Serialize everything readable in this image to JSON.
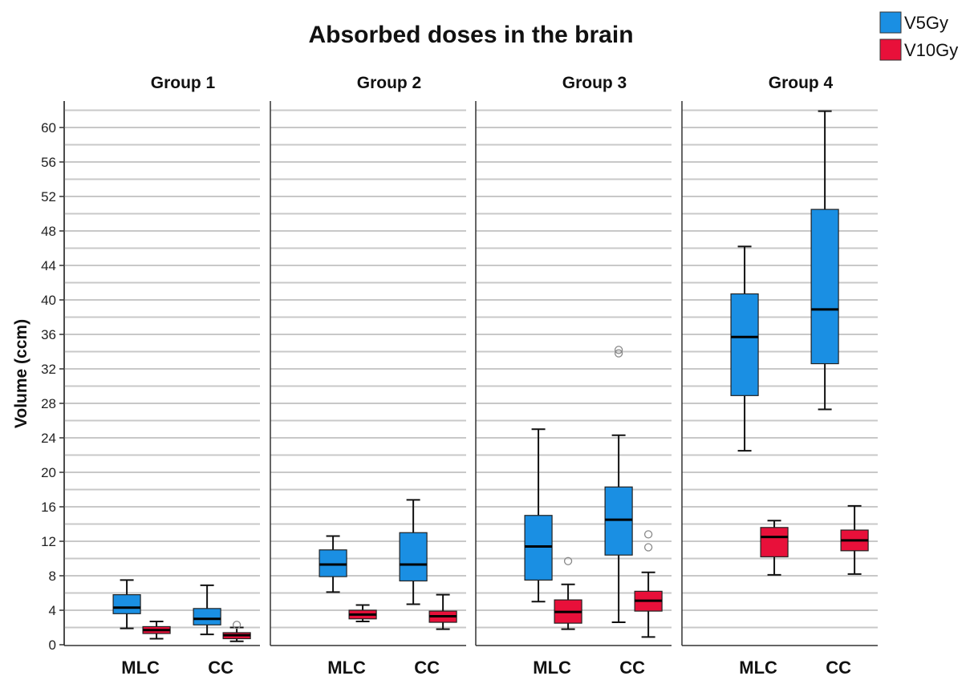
{
  "chart_data": {
    "type": "box",
    "title": "Absorbed doses in the brain",
    "ylabel": "Volume (ccm)",
    "xlabel": "",
    "ylim": [
      0,
      63
    ],
    "yticks": [
      0,
      4,
      8,
      12,
      16,
      20,
      24,
      28,
      32,
      36,
      40,
      44,
      48,
      52,
      56,
      60
    ],
    "minor_grid_step": 2,
    "grid": true,
    "legend": {
      "placement": "top-right",
      "entries": [
        {
          "name": "V5Gy",
          "color": "#1a8fe3"
        },
        {
          "name": "V10Gy",
          "color": "#e8103a"
        }
      ]
    },
    "categories": [
      "MLC",
      "CC"
    ],
    "panels": [
      {
        "title": "Group 1",
        "boxes": [
          {
            "category": "MLC",
            "series": "V5Gy",
            "whisker_low": 1.9,
            "q1": 3.6,
            "median": 4.3,
            "q3": 5.8,
            "whisker_high": 7.5,
            "outliers": []
          },
          {
            "category": "MLC",
            "series": "V10Gy",
            "whisker_low": 0.7,
            "q1": 1.3,
            "median": 1.7,
            "q3": 2.1,
            "whisker_high": 2.7,
            "outliers": []
          },
          {
            "category": "CC",
            "series": "V5Gy",
            "whisker_low": 1.2,
            "q1": 2.3,
            "median": 3.0,
            "q3": 4.2,
            "whisker_high": 6.9,
            "outliers": []
          },
          {
            "category": "CC",
            "series": "V10Gy",
            "whisker_low": 0.4,
            "q1": 0.7,
            "median": 1.1,
            "q3": 1.4,
            "whisker_high": 2.0,
            "outliers": [
              2.3
            ]
          }
        ]
      },
      {
        "title": "Group 2",
        "boxes": [
          {
            "category": "MLC",
            "series": "V5Gy",
            "whisker_low": 6.1,
            "q1": 7.9,
            "median": 9.3,
            "q3": 11.0,
            "whisker_high": 12.6,
            "outliers": []
          },
          {
            "category": "MLC",
            "series": "V10Gy",
            "whisker_low": 2.7,
            "q1": 3.0,
            "median": 3.5,
            "q3": 4.0,
            "whisker_high": 4.6,
            "outliers": []
          },
          {
            "category": "CC",
            "series": "V5Gy",
            "whisker_low": 4.7,
            "q1": 7.4,
            "median": 9.3,
            "q3": 13.0,
            "whisker_high": 16.8,
            "outliers": []
          },
          {
            "category": "CC",
            "series": "V10Gy",
            "whisker_low": 1.8,
            "q1": 2.6,
            "median": 3.3,
            "q3": 3.9,
            "whisker_high": 5.8,
            "outliers": []
          }
        ]
      },
      {
        "title": "Group 3",
        "boxes": [
          {
            "category": "MLC",
            "series": "V5Gy",
            "whisker_low": 5.0,
            "q1": 7.5,
            "median": 11.4,
            "q3": 15.0,
            "whisker_high": 25.0,
            "outliers": []
          },
          {
            "category": "MLC",
            "series": "V10Gy",
            "whisker_low": 1.8,
            "q1": 2.5,
            "median": 3.8,
            "q3": 5.2,
            "whisker_high": 7.0,
            "outliers": [
              9.7
            ]
          },
          {
            "category": "CC",
            "series": "V5Gy",
            "whisker_low": 2.6,
            "q1": 10.4,
            "median": 14.5,
            "q3": 18.3,
            "whisker_high": 24.3,
            "outliers": [
              33.8,
              34.2
            ]
          },
          {
            "category": "CC",
            "series": "V10Gy",
            "whisker_low": 0.9,
            "q1": 3.9,
            "median": 5.1,
            "q3": 6.2,
            "whisker_high": 8.4,
            "outliers": [
              11.3,
              12.8
            ]
          }
        ]
      },
      {
        "title": "Group 4",
        "boxes": [
          {
            "category": "MLC",
            "series": "V5Gy",
            "whisker_low": 22.5,
            "q1": 28.9,
            "median": 35.7,
            "q3": 40.7,
            "whisker_high": 46.2,
            "outliers": []
          },
          {
            "category": "MLC",
            "series": "V10Gy",
            "whisker_low": 8.1,
            "q1": 10.2,
            "median": 12.5,
            "q3": 13.6,
            "whisker_high": 14.4,
            "outliers": []
          },
          {
            "category": "CC",
            "series": "V5Gy",
            "whisker_low": 27.3,
            "q1": 32.6,
            "median": 38.9,
            "q3": 50.5,
            "whisker_high": 61.9,
            "outliers": []
          },
          {
            "category": "CC",
            "series": "V10Gy",
            "whisker_low": 8.2,
            "q1": 10.9,
            "median": 12.1,
            "q3": 13.3,
            "whisker_high": 16.1,
            "outliers": []
          }
        ]
      }
    ]
  }
}
